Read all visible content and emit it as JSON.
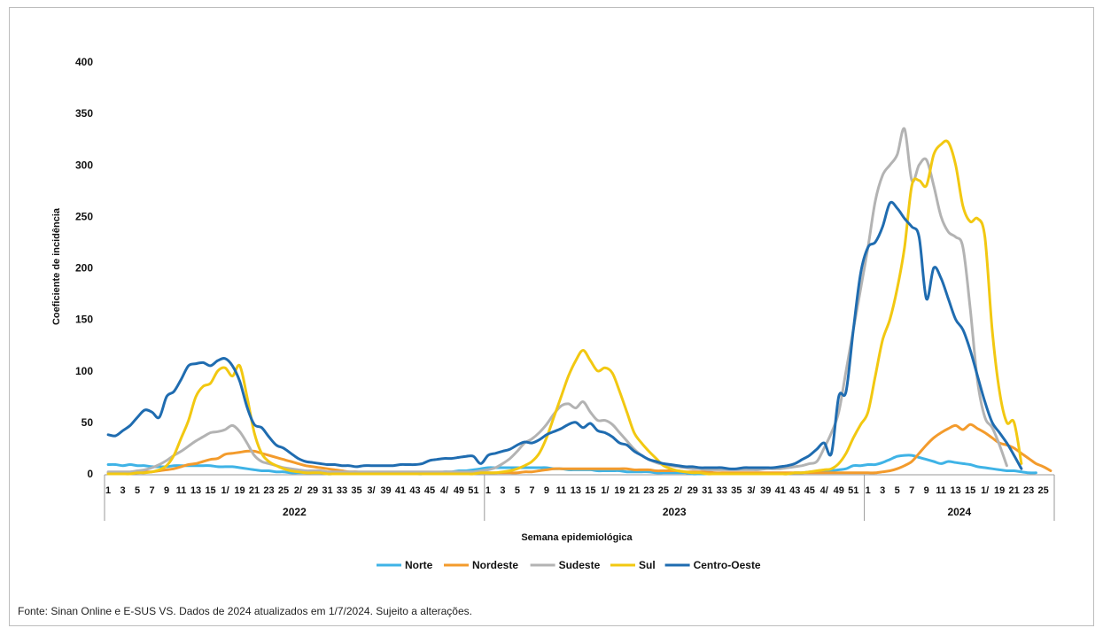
{
  "source_note": "Fonte: Sinan Online e E-SUS VS. Dados de 2024 atualizados em 1/7/2024. Sujeito a alterações.",
  "chart_data": {
    "type": "line",
    "ylabel": "Coeficiente de incidência",
    "xlabel": "Semana epidemiológica",
    "ylim": [
      0,
      400
    ],
    "yticks": [
      0,
      50,
      100,
      150,
      200,
      250,
      300,
      350,
      400
    ],
    "grid": false,
    "legend_position": "bottom",
    "years": [
      {
        "label": "2022",
        "weeks": 52,
        "tick_labels": [
          "1",
          "3",
          "5",
          "7",
          "9",
          "11",
          "13",
          "15",
          "1/",
          "19",
          "21",
          "23",
          "25",
          "2/",
          "29",
          "31",
          "33",
          "35",
          "3/",
          "39",
          "41",
          "43",
          "45",
          "4/",
          "49",
          "51"
        ]
      },
      {
        "label": "2023",
        "weeks": 52,
        "tick_labels": [
          "1",
          "3",
          "5",
          "7",
          "9",
          "11",
          "13",
          "15",
          "1/",
          "19",
          "21",
          "23",
          "25",
          "2/",
          "29",
          "31",
          "33",
          "35",
          "3/",
          "39",
          "41",
          "43",
          "45",
          "4/",
          "49",
          "51"
        ]
      },
      {
        "label": "2024",
        "weeks": 26,
        "tick_labels": [
          "1",
          "3",
          "5",
          "7",
          "9",
          "11",
          "13",
          "15",
          "1/",
          "19",
          "21",
          "23",
          "25"
        ]
      }
    ],
    "series": [
      {
        "name": "Norte",
        "color": "#3fb3e6",
        "values": [
          9,
          9,
          8,
          9,
          8,
          8,
          7,
          7,
          7,
          8,
          8,
          8,
          8,
          8,
          8,
          7,
          7,
          7,
          6,
          5,
          4,
          3,
          3,
          2,
          2,
          1,
          1,
          1,
          1,
          1,
          0,
          0,
          0,
          0,
          0,
          0,
          0,
          0,
          0,
          0,
          0,
          0,
          0,
          0,
          1,
          1,
          2,
          2,
          3,
          3,
          4,
          5,
          6,
          6,
          6,
          6,
          6,
          6,
          6,
          6,
          6,
          5,
          5,
          4,
          4,
          4,
          4,
          3,
          3,
          3,
          3,
          2,
          2,
          2,
          2,
          1,
          1,
          1,
          1,
          1,
          0,
          0,
          0,
          0,
          0,
          0,
          0,
          0,
          0,
          0,
          0,
          0,
          0,
          0,
          1,
          1,
          2,
          2,
          2,
          3,
          4,
          5,
          8,
          8,
          9,
          9,
          11,
          14,
          17,
          18,
          18,
          16,
          14,
          12,
          10,
          12,
          11,
          10,
          9,
          7,
          6,
          5,
          4,
          3,
          3,
          2,
          1,
          1
        ]
      },
      {
        "name": "Nordeste",
        "color": "#f39b2c",
        "values": [
          1,
          1,
          1,
          1,
          1,
          2,
          2,
          3,
          4,
          5,
          7,
          9,
          10,
          12,
          14,
          15,
          19,
          20,
          21,
          22,
          22,
          20,
          18,
          16,
          14,
          12,
          10,
          8,
          7,
          6,
          5,
          4,
          3,
          2,
          2,
          1,
          1,
          1,
          1,
          1,
          1,
          1,
          1,
          1,
          1,
          1,
          1,
          1,
          1,
          1,
          1,
          1,
          1,
          1,
          1,
          1,
          1,
          2,
          2,
          3,
          4,
          5,
          5,
          5,
          5,
          5,
          5,
          5,
          5,
          5,
          5,
          5,
          4,
          4,
          4,
          3,
          3,
          3,
          3,
          2,
          2,
          2,
          2,
          1,
          1,
          1,
          1,
          1,
          1,
          1,
          1,
          1,
          1,
          1,
          1,
          1,
          1,
          1,
          1,
          1,
          1,
          1,
          1,
          1,
          1,
          1,
          2,
          3,
          5,
          8,
          12,
          20,
          28,
          35,
          40,
          44,
          47,
          43,
          48,
          44,
          40,
          35,
          30,
          28,
          25,
          20,
          15,
          10,
          7,
          3
        ]
      },
      {
        "name": "Sudeste",
        "color": "#b3b3b3",
        "values": [
          2,
          2,
          2,
          2,
          3,
          4,
          6,
          9,
          13,
          18,
          22,
          27,
          32,
          36,
          40,
          41,
          43,
          47,
          41,
          30,
          18,
          12,
          10,
          8,
          6,
          5,
          4,
          3,
          3,
          3,
          2,
          2,
          2,
          2,
          2,
          2,
          2,
          2,
          2,
          2,
          2,
          2,
          2,
          2,
          2,
          2,
          2,
          2,
          2,
          2,
          2,
          3,
          4,
          6,
          10,
          15,
          22,
          30,
          34,
          40,
          48,
          58,
          66,
          68,
          64,
          70,
          60,
          52,
          52,
          48,
          40,
          32,
          24,
          18,
          14,
          11,
          9,
          8,
          7,
          6,
          5,
          5,
          4,
          4,
          4,
          4,
          4,
          4,
          4,
          4,
          5,
          5,
          5,
          6,
          7,
          8,
          10,
          12,
          25,
          40,
          60,
          100,
          140,
          180,
          220,
          265,
          290,
          300,
          310,
          335,
          285,
          300,
          305,
          280,
          250,
          235,
          230,
          220,
          160,
          90,
          55,
          45,
          28,
          8
        ]
      },
      {
        "name": "Sul",
        "color": "#f2c811",
        "values": [
          0,
          0,
          0,
          0,
          1,
          1,
          2,
          4,
          8,
          18,
          35,
          52,
          75,
          85,
          88,
          100,
          103,
          95,
          105,
          75,
          40,
          20,
          12,
          8,
          5,
          3,
          2,
          1,
          1,
          1,
          0,
          0,
          0,
          0,
          0,
          0,
          0,
          0,
          0,
          0,
          0,
          0,
          0,
          0,
          0,
          0,
          0,
          0,
          0,
          0,
          0,
          1,
          1,
          1,
          2,
          3,
          5,
          8,
          12,
          20,
          35,
          55,
          75,
          95,
          110,
          120,
          110,
          100,
          103,
          98,
          80,
          60,
          40,
          30,
          22,
          15,
          8,
          5,
          3,
          2,
          1,
          1,
          0,
          0,
          0,
          0,
          0,
          0,
          0,
          0,
          0,
          0,
          0,
          0,
          1,
          1,
          2,
          3,
          4,
          5,
          10,
          20,
          35,
          48,
          60,
          95,
          130,
          150,
          180,
          220,
          280,
          285,
          280,
          310,
          320,
          322,
          300,
          260,
          245,
          248,
          230,
          140,
          80,
          50,
          50,
          10
        ]
      },
      {
        "name": "Centro-Oeste",
        "color": "#1f6cb0",
        "values": [
          38,
          37,
          42,
          47,
          55,
          62,
          60,
          55,
          75,
          80,
          92,
          105,
          107,
          108,
          105,
          110,
          112,
          105,
          90,
          65,
          48,
          45,
          36,
          28,
          25,
          20,
          15,
          12,
          11,
          10,
          9,
          9,
          8,
          8,
          7,
          8,
          8,
          8,
          8,
          8,
          9,
          9,
          9,
          10,
          13,
          14,
          15,
          15,
          16,
          17,
          17,
          10,
          18,
          20,
          22,
          24,
          28,
          31,
          30,
          33,
          38,
          41,
          44,
          48,
          50,
          45,
          49,
          42,
          40,
          36,
          30,
          28,
          22,
          18,
          14,
          12,
          10,
          9,
          8,
          7,
          7,
          6,
          6,
          6,
          6,
          5,
          5,
          6,
          6,
          6,
          6,
          6,
          7,
          8,
          10,
          14,
          18,
          24,
          30,
          20,
          75,
          80,
          140,
          195,
          220,
          225,
          240,
          263,
          258,
          248,
          240,
          230,
          170,
          200,
          190,
          170,
          150,
          140,
          120,
          95,
          70,
          50,
          40,
          30,
          18,
          5
        ]
      }
    ]
  }
}
